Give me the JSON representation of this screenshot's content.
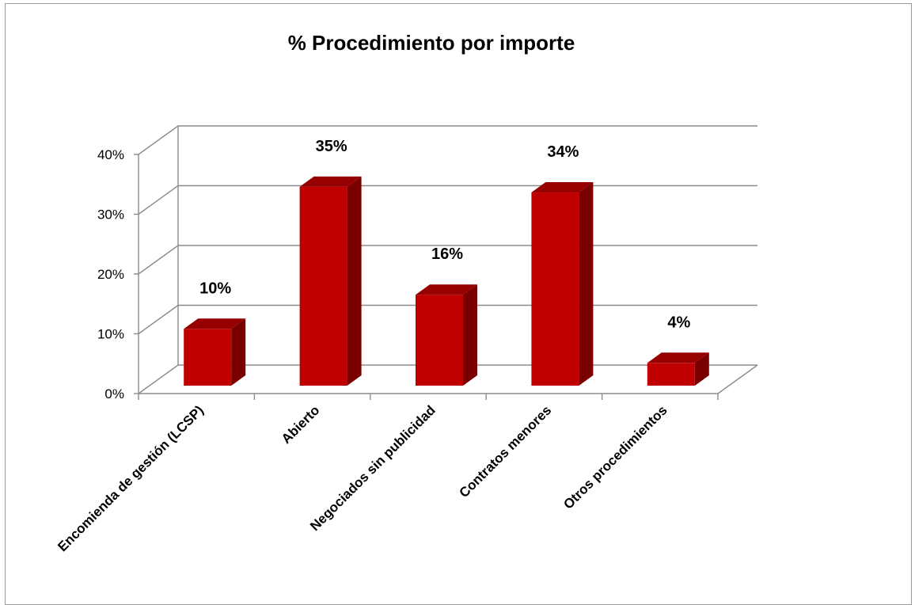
{
  "chart_data": {
    "type": "bar",
    "title": "% Procedimiento por importe",
    "categories": [
      "Encomienda de gestión (LCSP)",
      "Abierto",
      "Negociados sin publicidad",
      "Contratos menores",
      "Otros procedimientos"
    ],
    "values": [
      10,
      35,
      16,
      34,
      4
    ],
    "data_labels": [
      "10%",
      "35%",
      "16%",
      "34%",
      "4%"
    ],
    "y_ticks": [
      "0%",
      "10%",
      "20%",
      "30%",
      "40%"
    ],
    "ylim": [
      0,
      40
    ],
    "grid": true,
    "legend": "none",
    "style": "3d-column",
    "colors": {
      "bar_front": "#c00000",
      "bar_side": "#7a0000",
      "bar_top": "#960000",
      "grid": "#8c8c8c"
    }
  }
}
